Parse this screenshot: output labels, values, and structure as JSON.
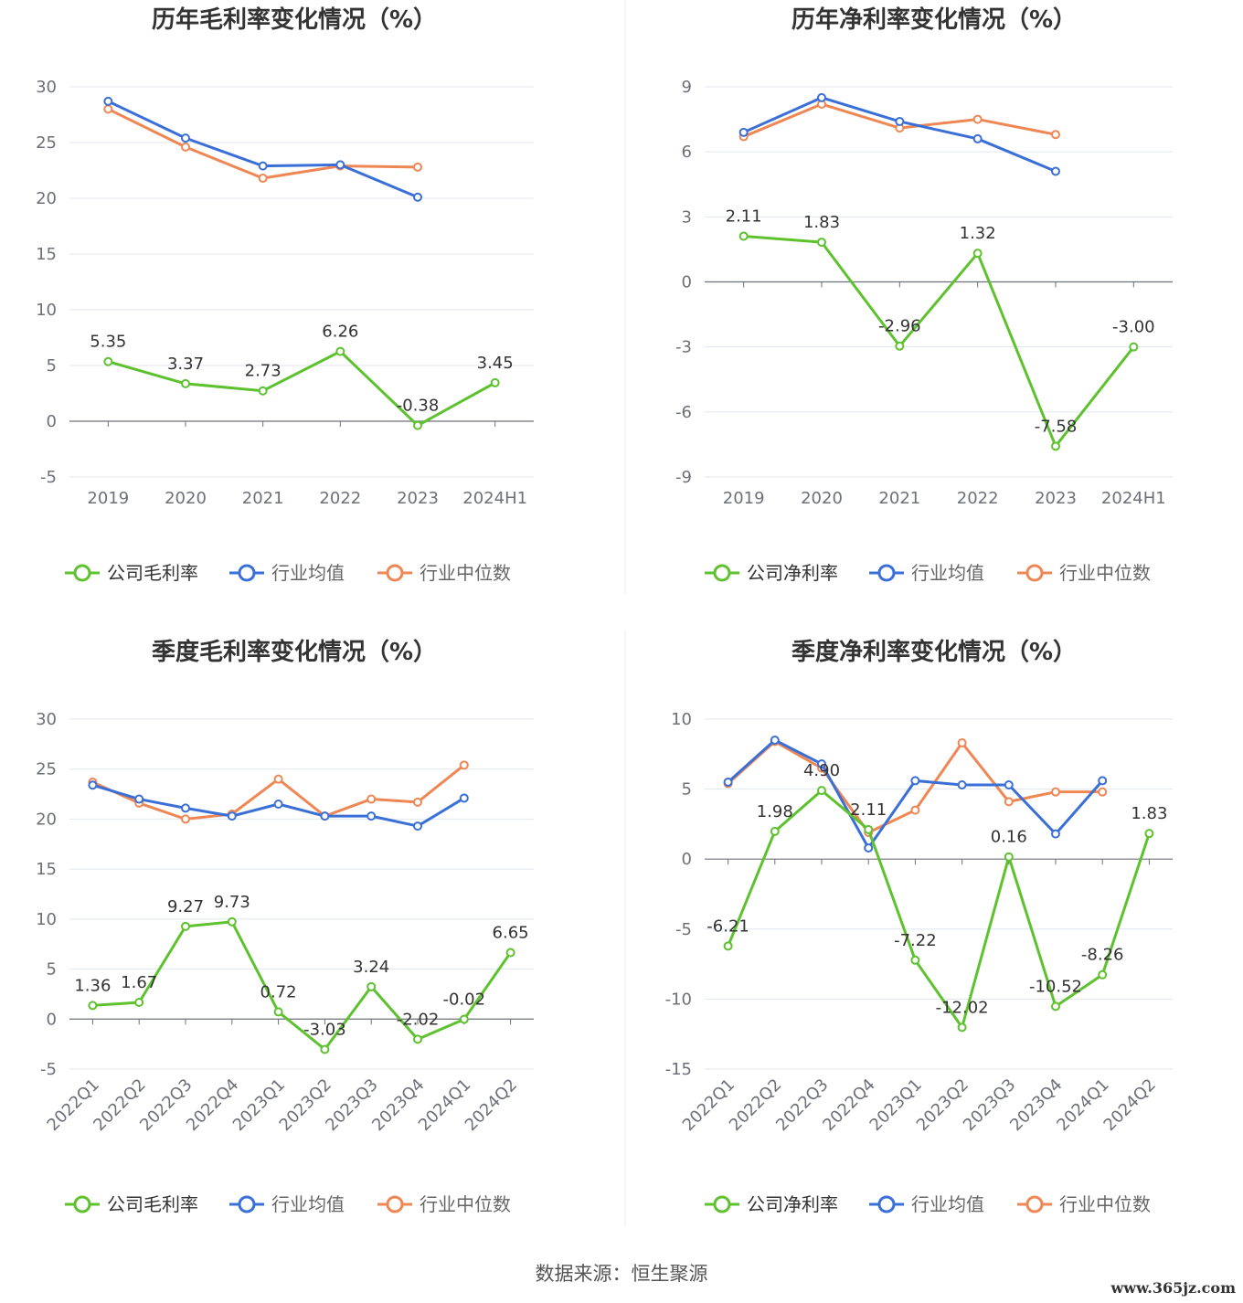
{
  "source_text": "数据来源：恒生聚源",
  "watermark": "www.365jz.com",
  "colors": {
    "company": "#5dc22e",
    "industry_avg": "#3a6fd8",
    "industry_median": "#ef8754"
  },
  "chart_data": [
    {
      "type": "line",
      "title": "历年毛利率变化情况（%）",
      "categories": [
        "2019",
        "2020",
        "2021",
        "2022",
        "2023",
        "2024H1"
      ],
      "ylim": [
        -5,
        30
      ],
      "yticks": [
        "30",
        "25",
        "20",
        "15",
        "10",
        "5",
        "0",
        "-5"
      ],
      "series": [
        {
          "name": "公司毛利率",
          "values": [
            5.35,
            3.37,
            2.73,
            6.26,
            -0.38,
            3.45
          ],
          "labels": [
            "5.35",
            "3.37",
            "2.73",
            "6.26",
            "-0.38",
            "3.45"
          ]
        },
        {
          "name": "行业均值",
          "values": [
            28.7,
            25.4,
            22.9,
            23.0,
            20.1,
            null
          ]
        },
        {
          "name": "行业中位数",
          "values": [
            28.0,
            24.6,
            21.8,
            22.9,
            22.8,
            null
          ]
        }
      ]
    },
    {
      "type": "line",
      "title": "历年净利率变化情况（%）",
      "categories": [
        "2019",
        "2020",
        "2021",
        "2022",
        "2023",
        "2024H1"
      ],
      "ylim": [
        -9,
        9
      ],
      "yticks": [
        "9",
        "6",
        "3",
        "0",
        "-3",
        "-6",
        "-9"
      ],
      "series": [
        {
          "name": "公司净利率",
          "values": [
            2.11,
            1.83,
            -2.96,
            1.32,
            -7.58,
            -3.0
          ],
          "labels": [
            "2.11",
            "1.83",
            "-2.96",
            "1.32",
            "-7.58",
            "-3.00"
          ]
        },
        {
          "name": "行业均值",
          "values": [
            6.9,
            8.5,
            7.4,
            6.6,
            5.1,
            null
          ]
        },
        {
          "name": "行业中位数",
          "values": [
            6.7,
            8.2,
            7.1,
            7.5,
            6.8,
            null
          ]
        }
      ]
    },
    {
      "type": "line",
      "title": "季度毛利率变化情况（%）",
      "categories": [
        "2022Q1",
        "2022Q2",
        "2022Q3",
        "2022Q4",
        "2023Q1",
        "2023Q2",
        "2023Q3",
        "2023Q4",
        "2024Q1",
        "2024Q2"
      ],
      "ylim": [
        -5,
        30
      ],
      "yticks": [
        "30",
        "25",
        "20",
        "15",
        "10",
        "5",
        "0",
        "-5"
      ],
      "series": [
        {
          "name": "公司毛利率",
          "values": [
            1.36,
            1.67,
            9.27,
            9.73,
            0.72,
            -3.03,
            3.24,
            -2.02,
            -0.02,
            6.65
          ],
          "labels": [
            "1.36",
            "1.67",
            "9.27",
            "9.73",
            "0.72",
            "-3.03",
            "3.24",
            "-2.02",
            "-0.02",
            "6.65"
          ]
        },
        {
          "name": "行业均值",
          "values": [
            23.4,
            22.0,
            21.1,
            20.3,
            21.5,
            20.3,
            20.3,
            19.3,
            22.1,
            null
          ]
        },
        {
          "name": "行业中位数",
          "values": [
            23.7,
            21.6,
            20.0,
            20.5,
            24.0,
            20.3,
            22.0,
            21.7,
            25.4,
            null
          ]
        }
      ]
    },
    {
      "type": "line",
      "title": "季度净利率变化情况（%）",
      "categories": [
        "2022Q1",
        "2022Q2",
        "2022Q3",
        "2022Q4",
        "2023Q1",
        "2023Q2",
        "2023Q3",
        "2023Q4",
        "2024Q1",
        "2024Q2"
      ],
      "ylim": [
        -15,
        10
      ],
      "yticks": [
        "10",
        "5",
        "0",
        "-5",
        "-10",
        "-15"
      ],
      "series": [
        {
          "name": "公司净利率",
          "values": [
            -6.21,
            1.98,
            4.9,
            2.11,
            -7.22,
            -12.02,
            0.16,
            -10.52,
            -8.26,
            1.83
          ],
          "labels": [
            "-6.21",
            "1.98",
            "4.90",
            "2.11",
            "-7.22",
            "-12.02",
            "0.16",
            "-10.52",
            "-8.26",
            "1.83"
          ]
        },
        {
          "name": "行业均值",
          "values": [
            5.5,
            8.5,
            6.8,
            0.8,
            5.6,
            5.3,
            5.3,
            1.8,
            5.6,
            null
          ]
        },
        {
          "name": "行业中位数",
          "values": [
            5.4,
            8.4,
            6.5,
            1.9,
            3.5,
            8.3,
            4.1,
            4.8,
            4.8,
            null
          ]
        }
      ]
    }
  ]
}
